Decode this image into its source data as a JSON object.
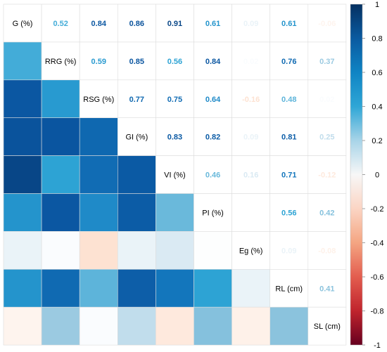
{
  "chart_data": {
    "type": "heatmap",
    "variables": [
      "G (%)",
      "RRG (%)",
      "RSG (%)",
      "GI (%)",
      "VI (%)",
      "PI (%)",
      "Eg (%)",
      "RL (cm)",
      "SL (cm)"
    ],
    "matrix": [
      [
        1.0,
        0.52,
        0.84,
        0.86,
        0.91,
        0.61,
        0.09,
        0.61,
        -0.06
      ],
      [
        0.52,
        1.0,
        0.59,
        0.85,
        0.56,
        0.84,
        0.02,
        0.76,
        0.37
      ],
      [
        0.84,
        0.59,
        1.0,
        0.77,
        0.75,
        0.64,
        -0.16,
        0.48,
        0.02
      ],
      [
        0.86,
        0.85,
        0.77,
        1.0,
        0.83,
        0.82,
        0.09,
        0.81,
        0.25
      ],
      [
        0.91,
        0.56,
        0.75,
        0.83,
        1.0,
        0.46,
        0.16,
        0.71,
        -0.12
      ],
      [
        0.61,
        0.84,
        0.64,
        0.82,
        0.46,
        1.0,
        0.01,
        0.56,
        0.42
      ],
      [
        0.09,
        0.02,
        -0.16,
        0.09,
        0.16,
        0.01,
        1.0,
        0.09,
        -0.08
      ],
      [
        0.61,
        0.76,
        0.48,
        0.81,
        0.71,
        0.56,
        0.09,
        1.0,
        0.41
      ],
      [
        -0.06,
        0.37,
        0.02,
        0.25,
        -0.12,
        0.42,
        -0.08,
        0.41,
        1.0
      ]
    ],
    "upper_labels": [
      [
        "",
        "0.52",
        "0.84",
        "0.86",
        "0.91",
        "0.61",
        "0.09",
        "0.61",
        "-0.06"
      ],
      [
        "",
        "",
        "0.59",
        "0.85",
        "0.56",
        "0.84",
        "0.02",
        "0.76",
        "0.37"
      ],
      [
        "",
        "",
        "",
        "0.77",
        "0.75",
        "0.64",
        "-0.16",
        "0.48",
        "0.02"
      ],
      [
        "",
        "",
        "",
        "",
        "0.83",
        "0.82",
        "0.09",
        "0.81",
        "0.25"
      ],
      [
        "",
        "",
        "",
        "",
        "",
        "0.46",
        "0.16",
        "0.71",
        "-0.12"
      ],
      [
        "",
        "",
        "",
        "",
        "",
        "",
        "",
        "0.56",
        "0.42"
      ],
      [
        "",
        "",
        "",
        "",
        "",
        "",
        "",
        "0.09",
        "-0.08"
      ],
      [
        "",
        "",
        "",
        "",
        "",
        "",
        "",
        "",
        "0.41"
      ],
      [
        "",
        "",
        "",
        "",
        "",
        "",
        "",
        "",
        ""
      ]
    ],
    "colorbar": {
      "range": [
        -1,
        1
      ],
      "ticks": [
        "1",
        "0.8",
        "0.6",
        "0.4",
        "0.2",
        "0",
        "-0.2",
        "-0.4",
        "-0.6",
        "-0.8",
        "-1"
      ]
    },
    "colors": {
      "negative": "#67001f",
      "mid_negative": "#f4a582",
      "zero": "#ffffff",
      "mid_positive": "#2fa6d6",
      "positive": "#053061",
      "grid": "#dddddd"
    },
    "title": "",
    "xlabel": "",
    "ylabel": ""
  }
}
